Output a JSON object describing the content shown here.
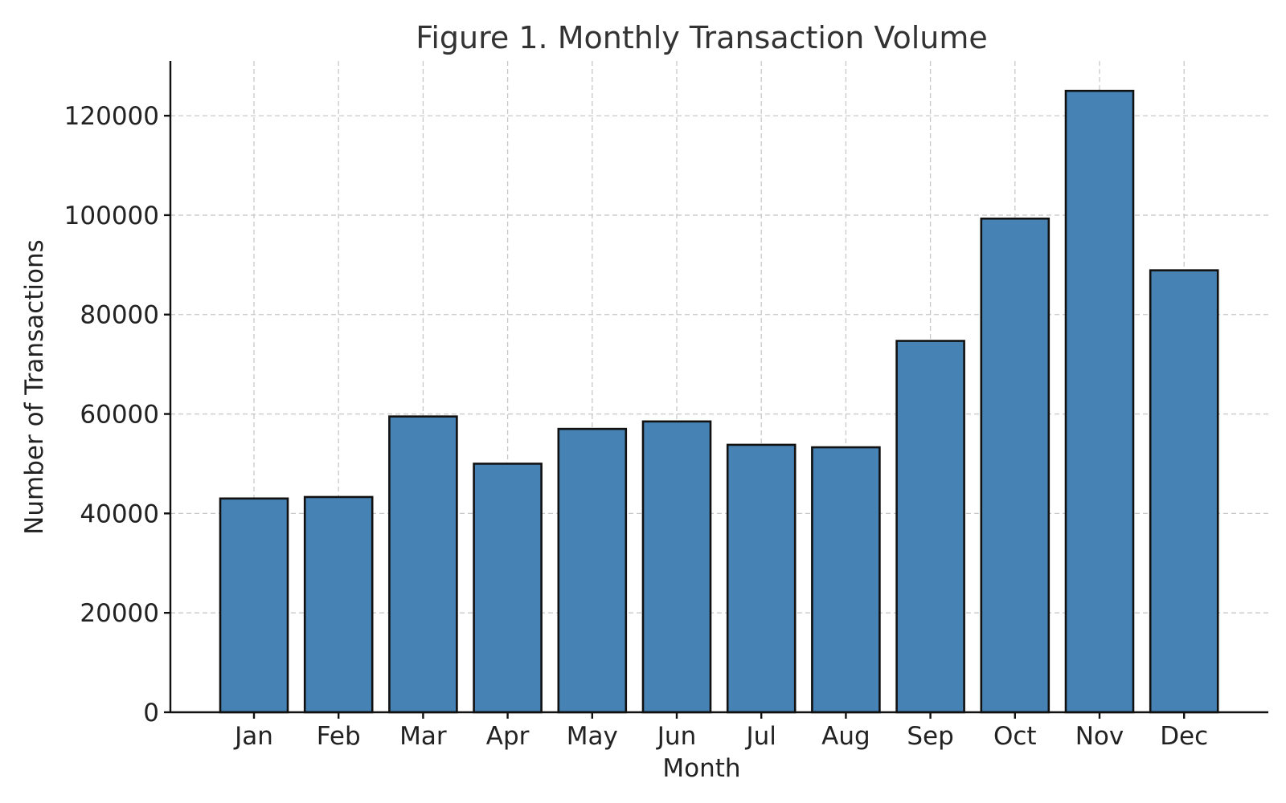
{
  "chart_data": {
    "type": "bar",
    "title": "Figure 1. Monthly Transaction Volume",
    "xlabel": "Month",
    "ylabel": "Number of Transactions",
    "categories": [
      "Jan",
      "Feb",
      "Mar",
      "Apr",
      "May",
      "Jun",
      "Jul",
      "Aug",
      "Sep",
      "Oct",
      "Nov",
      "Dec"
    ],
    "values": [
      43000,
      43300,
      59500,
      50000,
      57000,
      58500,
      53800,
      53300,
      74700,
      99300,
      125000,
      88900
    ],
    "ylim": [
      0,
      131000
    ],
    "yticks": [
      0,
      20000,
      40000,
      60000,
      80000,
      100000,
      120000
    ],
    "grid": true,
    "colors": {
      "bar_fill": "#4682b4",
      "bar_edge": "#111111",
      "grid": "#c8c8c8",
      "text": "#222222",
      "title": "#333333"
    }
  }
}
